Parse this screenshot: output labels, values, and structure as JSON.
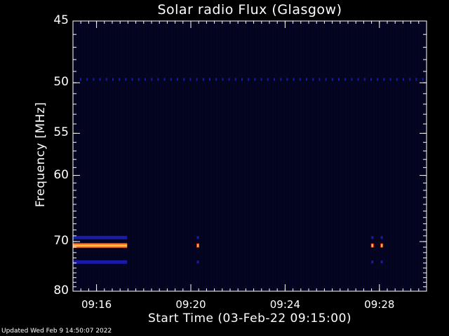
{
  "page": {
    "title": "Solar radio Flux (Glasgow)",
    "updated": "Updated Wed Feb  9 14:50:07 2022"
  },
  "chart_data": {
    "type": "heatmap",
    "title": "Solar radio Flux (Glasgow)",
    "xlabel": "Start Time (03-Feb-22 09:15:00)",
    "ylabel": "Frequency [MHz]",
    "x_ticks": [
      "09:16",
      "09:20",
      "09:24",
      "09:28"
    ],
    "x_tick_minutes": [
      1,
      5,
      9,
      13
    ],
    "xlim_minutes": [
      0,
      15
    ],
    "y_ticks": [
      45,
      50,
      55,
      60,
      70,
      80
    ],
    "ylim": [
      45,
      80
    ],
    "y_scale": "reciprocal",
    "colors": {
      "background": "#000000",
      "intensity_low": "#06063a",
      "intensity_mid": "#ff2a00",
      "intensity_high": "#ffd050"
    },
    "features": [
      {
        "kind": "band",
        "freq": 70.7,
        "t_start": 0,
        "t_end": 2.3,
        "level": "high"
      },
      {
        "kind": "band",
        "freq": 69.3,
        "t_start": 0,
        "t_end": 2.3,
        "level": "low"
      },
      {
        "kind": "band",
        "freq": 73.8,
        "t_start": 0,
        "t_end": 2.3,
        "level": "low"
      },
      {
        "kind": "burst",
        "freq": 70.7,
        "t": 5.3,
        "level": "mid"
      },
      {
        "kind": "burst",
        "freq": 70.7,
        "t": 12.7,
        "level": "mid"
      },
      {
        "kind": "burst",
        "freq": 70.7,
        "t": 13.1,
        "level": "mid"
      },
      {
        "kind": "dotted_line",
        "freq": 49.7,
        "t_start": 0,
        "t_end": 15,
        "level": "low"
      }
    ]
  }
}
